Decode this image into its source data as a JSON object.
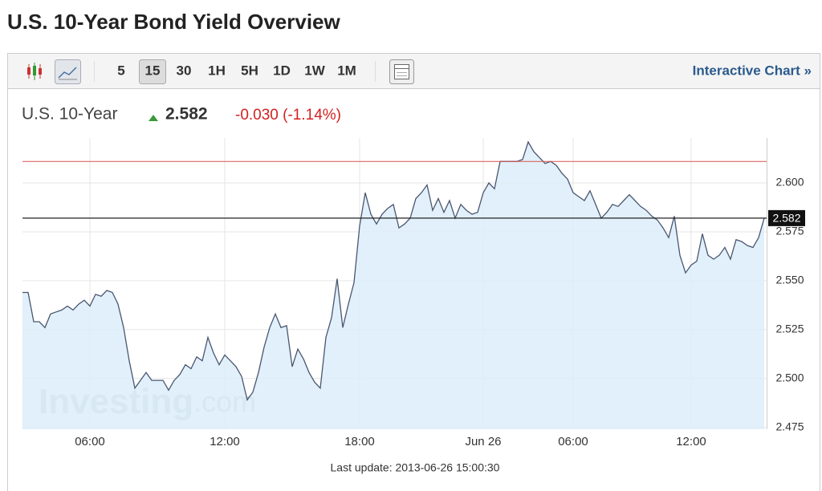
{
  "header": {
    "title": "U.S. 10-Year Bond Yield Overview"
  },
  "toolbar": {
    "intervals": [
      "5",
      "15",
      "30",
      "1H",
      "5H",
      "1D",
      "1W",
      "1M"
    ],
    "selected": 1,
    "link": "Interactive Chart »"
  },
  "quote": {
    "name": "U.S. 10-Year",
    "last": "2.582",
    "change": "-0.030 (-1.14%)"
  },
  "chart_data": {
    "type": "area",
    "color": "#4a5670",
    "fill": "#dcedf9",
    "grid": true,
    "ylim": [
      2.474,
      2.623
    ],
    "yticks": [
      2.475,
      {
        "value": 2.5,
        "label": "2.500"
      },
      2.525,
      {
        "value": 2.55,
        "label": "2.550"
      },
      2.575,
      {
        "value": 2.6,
        "label": "2.600"
      }
    ],
    "current_value": 2.582,
    "reference_line": 2.611,
    "reference_color": "#d9534f",
    "watermark": [
      "Investing",
      ".com"
    ],
    "footer": "Last update: 2013-06-26 15:00:30",
    "categories": [
      null,
      null,
      null,
      null,
      null,
      null,
      null,
      null,
      null,
      null,
      null,
      null,
      "06:00",
      null,
      null,
      null,
      null,
      null,
      null,
      null,
      null,
      null,
      null,
      null,
      null,
      null,
      null,
      null,
      null,
      null,
      null,
      null,
      null,
      null,
      null,
      null,
      "12:00",
      null,
      null,
      null,
      null,
      null,
      null,
      null,
      null,
      null,
      null,
      null,
      null,
      null,
      null,
      null,
      null,
      null,
      null,
      null,
      null,
      null,
      null,
      null,
      "18:00",
      null,
      null,
      null,
      null,
      null,
      null,
      null,
      null,
      null,
      null,
      null,
      null,
      null,
      null,
      null,
      null,
      null,
      null,
      null,
      null,
      null,
      "Jun 26",
      null,
      null,
      null,
      null,
      null,
      null,
      null,
      null,
      null,
      null,
      null,
      null,
      null,
      null,
      null,
      "06:00",
      null,
      null,
      null,
      null,
      null,
      null,
      null,
      null,
      null,
      null,
      null,
      null,
      null,
      null,
      null,
      null,
      null,
      null,
      null,
      null,
      "12:00",
      null,
      null,
      null,
      null,
      null,
      null,
      null,
      null,
      null,
      null,
      null,
      null,
      null
    ],
    "values": [
      2.544,
      2.544,
      2.529,
      2.529,
      2.526,
      2.533,
      2.534,
      2.535,
      2.537,
      2.535,
      2.538,
      2.54,
      2.537,
      2.543,
      2.542,
      2.545,
      2.544,
      2.538,
      2.526,
      2.509,
      2.495,
      2.499,
      2.503,
      2.499,
      2.499,
      2.499,
      2.494,
      2.499,
      2.502,
      2.507,
      2.505,
      2.511,
      2.509,
      2.521,
      2.513,
      2.507,
      2.512,
      2.509,
      2.506,
      2.501,
      2.489,
      2.493,
      2.503,
      2.516,
      2.526,
      2.533,
      2.526,
      2.527,
      2.506,
      2.515,
      2.51,
      2.503,
      2.498,
      2.495,
      2.521,
      2.531,
      2.551,
      2.526,
      2.538,
      2.549,
      2.578,
      2.595,
      2.584,
      2.579,
      2.584,
      2.587,
      2.589,
      2.577,
      2.579,
      2.582,
      2.592,
      2.595,
      2.599,
      2.586,
      2.592,
      2.585,
      2.591,
      2.582,
      2.589,
      2.586,
      2.584,
      2.585,
      2.595,
      2.6,
      2.597,
      2.611,
      2.611,
      2.611,
      2.611,
      2.612,
      2.621,
      2.616,
      2.613,
      2.61,
      2.611,
      2.609,
      2.605,
      2.602,
      2.595,
      2.593,
      2.591,
      2.596,
      2.589,
      2.582,
      2.585,
      2.589,
      2.588,
      2.591,
      2.594,
      2.591,
      2.588,
      2.586,
      2.583,
      2.581,
      2.577,
      2.572,
      2.583,
      2.563,
      2.554,
      2.558,
      2.56,
      2.574,
      2.563,
      2.561,
      2.563,
      2.567,
      2.561,
      2.571,
      2.57,
      2.568,
      2.567,
      2.572,
      2.582
    ]
  }
}
